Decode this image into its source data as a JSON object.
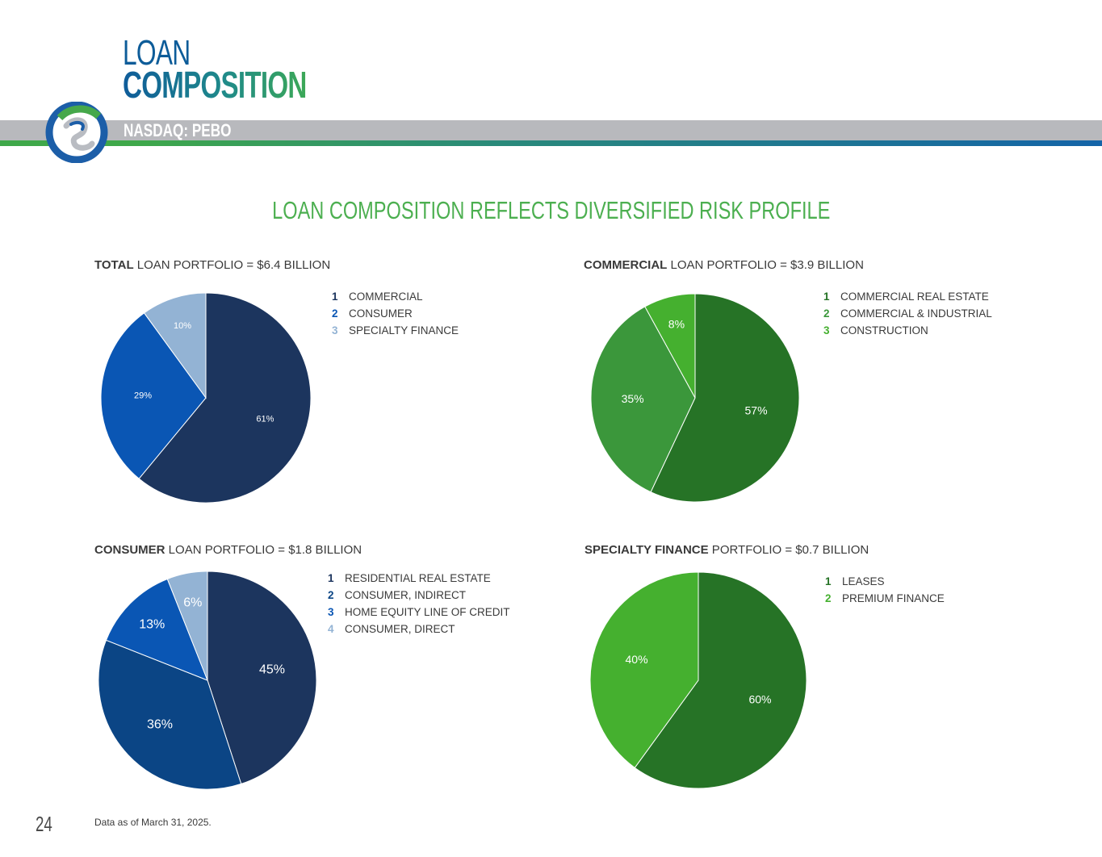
{
  "page": {
    "title_line1": "LOAN",
    "title_line2": "COMPOSITION",
    "ticker": "NASDAQ: PEBO",
    "headline": "LOAN COMPOSITION REFLECTS DIVERSIFIED RISK PROFILE",
    "page_number": "24",
    "footnote": "Data as of March 31, 2025."
  },
  "chart_data": [
    {
      "type": "pie",
      "title_bold": "TOTAL",
      "title_rest": " LOAN PORTFOLIO = $6.4 BILLION",
      "categories": [
        "COMMERCIAL",
        "CONSUMER",
        "SPECIALTY FINANCE"
      ],
      "values": [
        61,
        29,
        10
      ],
      "labels": [
        "61%",
        "29%",
        "10%"
      ],
      "legend_numbers": [
        "1",
        "2",
        "3"
      ],
      "colors": [
        "#1c355e",
        "#0a56b4",
        "#93b3d4"
      ],
      "number_colors": [
        "#1c355e",
        "#0a56b4",
        "#93b3d4"
      ],
      "label_color": "#ffffff"
    },
    {
      "type": "pie",
      "title_bold": "COMMERCIAL",
      "title_rest": " LOAN PORTFOLIO = $3.9 BILLION",
      "categories": [
        "COMMERCIAL REAL ESTATE",
        "COMMERCIAL & INDUSTRIAL",
        "CONSTRUCTION"
      ],
      "values": [
        57,
        35,
        8
      ],
      "labels": [
        "57%",
        "35%",
        "8%"
      ],
      "legend_numbers": [
        "1",
        "2",
        "3"
      ],
      "colors": [
        "#267326",
        "#3b973b",
        "#45b02f"
      ],
      "number_colors": [
        "#267326",
        "#3b973b",
        "#45b02f"
      ],
      "label_color": "#ffffff"
    },
    {
      "type": "pie",
      "title_bold": "CONSUMER",
      "title_rest": " LOAN PORTFOLIO = $1.8 BILLION",
      "categories": [
        "RESIDENTIAL REAL ESTATE",
        "CONSUMER, INDIRECT",
        "HOME EQUITY LINE OF CREDIT",
        "CONSUMER, DIRECT"
      ],
      "values": [
        45,
        36,
        13,
        6
      ],
      "labels": [
        "45%",
        "36%",
        "13%",
        "6%"
      ],
      "legend_numbers": [
        "1",
        "2",
        "3",
        "4"
      ],
      "colors": [
        "#1c355e",
        "#0b4585",
        "#0a56b4",
        "#93b3d4"
      ],
      "number_colors": [
        "#1c355e",
        "#0b4585",
        "#0a56b4",
        "#93b3d4"
      ],
      "label_color": "#ffffff"
    },
    {
      "type": "pie",
      "title_bold": "SPECIALTY FINANCE",
      "title_rest": " PORTFOLIO = $0.7 BILLION",
      "categories": [
        "LEASES",
        "PREMIUM FINANCE"
      ],
      "values": [
        60,
        40
      ],
      "labels": [
        "60%",
        "40%"
      ],
      "legend_numbers": [
        "1",
        "2"
      ],
      "colors": [
        "#267326",
        "#45b02f"
      ],
      "number_colors": [
        "#267326",
        "#45b02f"
      ],
      "label_color": "#ffffff"
    }
  ]
}
